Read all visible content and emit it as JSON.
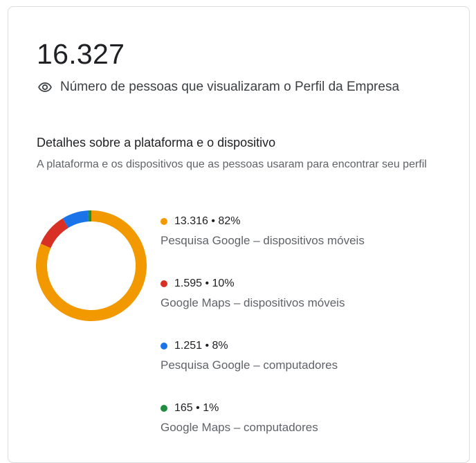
{
  "summary": {
    "total": "16.327",
    "label": "Número de pessoas que visualizaram o Perfil da Empresa"
  },
  "section": {
    "title": "Detalhes sobre a plataforma e o dispositivo",
    "description": "A plataforma e os dispositivos que as pessoas usaram para encontrar seu perfil"
  },
  "legend": [
    {
      "value_text": "13.316 • 82%",
      "label": "Pesquisa Google – dispositivos móveis",
      "color": "#f29900"
    },
    {
      "value_text": "1.595 • 10%",
      "label": "Google Maps – dispositivos móveis",
      "color": "#d93025"
    },
    {
      "value_text": "1.251 • 8%",
      "label": "Pesquisa Google – computadores",
      "color": "#1a73e8"
    },
    {
      "value_text": "165 • 1%",
      "label": "Google Maps – computadores",
      "color": "#1e8e3e"
    }
  ],
  "chart_data": {
    "type": "pie",
    "categories": [
      "Pesquisa Google – dispositivos móveis",
      "Google Maps – dispositivos móveis",
      "Pesquisa Google – computadores",
      "Google Maps – computadores"
    ],
    "values": [
      13316,
      1595,
      1251,
      165
    ],
    "percentages": [
      82,
      10,
      8,
      1
    ],
    "colors": [
      "#f29900",
      "#d93025",
      "#1a73e8",
      "#1e8e3e"
    ],
    "title": "Detalhes sobre a plataforma e o dispositivo"
  }
}
